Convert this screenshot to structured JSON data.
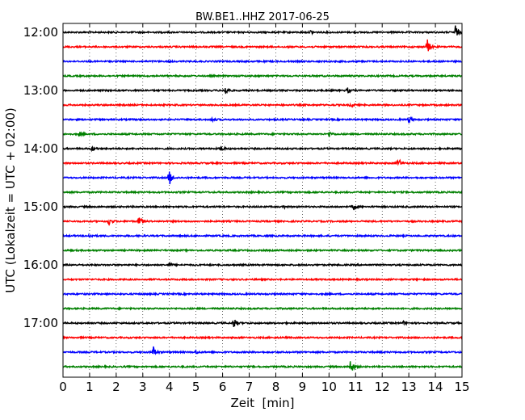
{
  "chart_data": {
    "type": "line",
    "title": "BW.BE1..HHZ 2017-06-25",
    "xlabel": "Zeit  [min]",
    "ylabel": "UTC (Lokalzeit = UTC + 02:00)",
    "xlim": [
      0,
      15
    ],
    "x_ticks": [
      "0",
      "1",
      "2",
      "3",
      "4",
      "5",
      "6",
      "7",
      "8",
      "9",
      "10",
      "11",
      "12",
      "13",
      "14",
      "15"
    ],
    "y_tick_labels": [
      "12:00",
      "13:00",
      "14:00",
      "15:00",
      "16:00",
      "17:00"
    ],
    "y_tick_trace_index": [
      0,
      4,
      8,
      12,
      16,
      20
    ],
    "trace_interval_minutes": 15,
    "grid": {
      "x": "dotted vertical at each minute",
      "y": "none"
    },
    "colors": [
      "#000000",
      "#ff0000",
      "#0000ff",
      "#008000"
    ],
    "traces": [
      {
        "start": "12:00",
        "events": [
          {
            "t": 9.3,
            "a": 2.2
          },
          {
            "t": 14.75,
            "a": 9
          }
        ]
      },
      {
        "start": "12:15",
        "events": [
          {
            "t": 13.7,
            "a": 9
          }
        ]
      },
      {
        "start": "12:30",
        "events": []
      },
      {
        "start": "12:45",
        "events": []
      },
      {
        "start": "13:00",
        "events": [
          {
            "t": 6.1,
            "a": 7
          },
          {
            "t": 10.7,
            "a": 3
          }
        ]
      },
      {
        "start": "13:15",
        "events": [
          {
            "t": 10.8,
            "a": 3
          }
        ]
      },
      {
        "start": "13:30",
        "events": [
          {
            "t": 5.6,
            "a": 3
          },
          {
            "t": 13.0,
            "a": 5
          }
        ]
      },
      {
        "start": "13:45",
        "events": [
          {
            "t": 0.6,
            "a": 3
          },
          {
            "t": 10.0,
            "a": 4
          }
        ]
      },
      {
        "start": "14:00",
        "events": [
          {
            "t": 1.1,
            "a": 4
          },
          {
            "t": 5.95,
            "a": 4
          }
        ]
      },
      {
        "start": "14:15",
        "events": [
          {
            "t": 12.6,
            "a": 7
          }
        ]
      },
      {
        "start": "14:30",
        "events": [
          {
            "t": 4.0,
            "a": 10
          }
        ]
      },
      {
        "start": "14:45",
        "events": []
      },
      {
        "start": "15:00",
        "events": [
          {
            "t": 8.3,
            "a": 2
          },
          {
            "t": 10.9,
            "a": 5
          }
        ]
      },
      {
        "start": "15:15",
        "events": [
          {
            "t": 1.7,
            "a": 6
          },
          {
            "t": 2.85,
            "a": 9
          }
        ]
      },
      {
        "start": "15:30",
        "events": [
          {
            "t": 1.0,
            "a": 3
          }
        ]
      },
      {
        "start": "15:45",
        "events": []
      },
      {
        "start": "16:00",
        "events": [
          {
            "t": 4.0,
            "a": 2
          }
        ]
      },
      {
        "start": "16:15",
        "events": []
      },
      {
        "start": "16:30",
        "events": []
      },
      {
        "start": "16:45",
        "events": []
      },
      {
        "start": "17:00",
        "events": [
          {
            "t": 6.4,
            "a": 8
          },
          {
            "t": 12.8,
            "a": 2
          }
        ]
      },
      {
        "start": "17:15",
        "events": []
      },
      {
        "start": "17:30",
        "events": [
          {
            "t": 3.4,
            "a": 7
          },
          {
            "t": 5.0,
            "a": 2
          }
        ]
      },
      {
        "start": "17:45",
        "events": [
          {
            "t": 10.8,
            "a": 11
          }
        ]
      }
    ]
  }
}
